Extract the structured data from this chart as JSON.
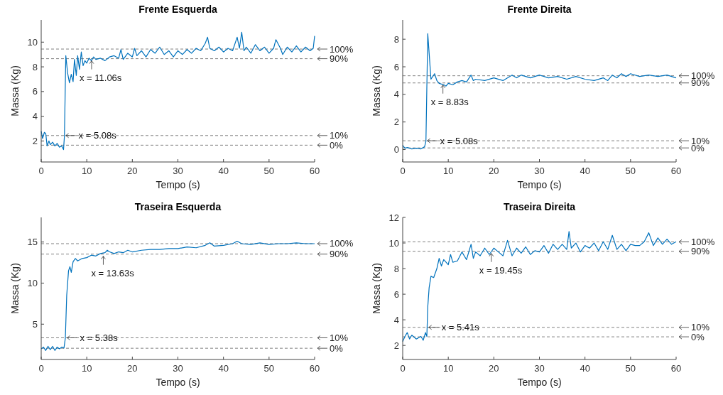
{
  "chart_data": [
    {
      "type": "line",
      "title": "Frente Esquerda",
      "xlabel": "Tempo (s)",
      "ylabel": "Massa (Kg)",
      "xlim": [
        0,
        60
      ],
      "xticks": [
        0,
        10,
        20,
        30,
        40,
        50,
        60
      ],
      "ylim": [
        0.3,
        11.8
      ],
      "yticks": [
        2,
        4,
        6,
        8,
        10
      ],
      "series": [
        {
          "color": "#0072bd",
          "x": [
            0,
            0.3,
            0.7,
            1,
            1.3,
            1.7,
            2,
            2.5,
            3,
            3.5,
            4,
            4.5,
            4.9,
            5.1,
            5.4,
            5.8,
            6.2,
            6.6,
            7,
            7.3,
            7.7,
            8,
            8.4,
            8.8,
            9.2,
            9.6,
            10,
            10.5,
            11,
            11.5,
            12,
            13,
            14,
            15,
            16,
            17,
            17.5,
            18,
            19,
            20,
            20.5,
            21,
            22,
            23,
            24,
            25,
            26,
            27,
            28,
            29,
            30,
            31,
            32,
            33,
            34,
            35,
            36,
            36.5,
            37,
            38,
            39,
            40,
            41,
            42,
            43,
            43.5,
            44,
            44.5,
            45,
            46,
            47,
            48,
            49,
            50,
            51,
            51.5,
            52.5,
            53,
            54,
            55,
            56,
            57,
            58,
            59,
            59.7,
            60
          ],
          "values": [
            2.8,
            2.2,
            2.7,
            2.6,
            1.6,
            2.0,
            1.7,
            1.9,
            1.6,
            1.8,
            1.5,
            1.6,
            1.3,
            2.4,
            8.9,
            7.5,
            6.7,
            7.4,
            6.8,
            8.6,
            7.3,
            8.9,
            7.8,
            9.2,
            8.1,
            8.5,
            8.3,
            8.7,
            8.5,
            8.8,
            8.6,
            8.7,
            8.5,
            8.8,
            8.9,
            8.7,
            9.4,
            8.6,
            9.1,
            8.8,
            9.5,
            8.9,
            9.3,
            8.8,
            9.4,
            9.1,
            9.6,
            9.0,
            9.3,
            8.8,
            9.3,
            9.0,
            9.4,
            9.1,
            9.5,
            9.3,
            9.9,
            10.4,
            9.5,
            9.3,
            9.6,
            9.2,
            9.5,
            9.3,
            10.4,
            9.5,
            10.8,
            9.3,
            9.6,
            9.1,
            9.8,
            9.3,
            9.6,
            9.1,
            9.5,
            10.2,
            9.5,
            9.0,
            9.6,
            9.2,
            9.7,
            9.2,
            9.6,
            9.3,
            9.5,
            10.5
          ]
        }
      ],
      "ref_lines": [
        {
          "axis": "y",
          "value": 9.44,
          "color": "#808080",
          "line_style": "dashed"
        },
        {
          "axis": "y",
          "value": 8.66,
          "color": "#808080",
          "line_style": "dashed"
        },
        {
          "axis": "y",
          "value": 2.44,
          "color": "#808080",
          "line_style": "dashed"
        },
        {
          "axis": "y",
          "value": 1.66,
          "color": "#808080",
          "line_style": "dashed"
        }
      ],
      "annotations": [
        {
          "text": "x = 5.08s",
          "x": 5.08,
          "y": 2.44
        },
        {
          "text": "x = 11.06s",
          "x": 11.06,
          "y": 8.66
        },
        {
          "text": "100%",
          "x": 60,
          "y": 9.44
        },
        {
          "text": "90%",
          "x": 60,
          "y": 8.66
        },
        {
          "text": "10%",
          "x": 60,
          "y": 2.44
        },
        {
          "text": "0%",
          "x": 60,
          "y": 1.66
        }
      ]
    },
    {
      "type": "line",
      "title": "Frente Direita",
      "xlabel": "Tempo (s)",
      "ylabel": "Massa (Kg)",
      "xlim": [
        0,
        60
      ],
      "xticks": [
        0,
        10,
        20,
        30,
        40,
        50,
        60
      ],
      "ylim": [
        -0.9,
        9.4
      ],
      "yticks": [
        0,
        2,
        4,
        6,
        8
      ],
      "series": [
        {
          "color": "#0072bd",
          "x": [
            0,
            0.5,
            1,
            2,
            3,
            4,
            4.8,
            5.1,
            5.5,
            5.8,
            6.2,
            6.6,
            7,
            7.5,
            8,
            9,
            9.5,
            10,
            11,
            12,
            13,
            14,
            15,
            15.5,
            16,
            18,
            20,
            22,
            24,
            25,
            26,
            28,
            30,
            32,
            34,
            36,
            38,
            40,
            42,
            44,
            45,
            46,
            47,
            48,
            49,
            50,
            52,
            54,
            56,
            58,
            60
          ],
          "values": [
            0.3,
            0.1,
            0.15,
            0.05,
            0.1,
            0.05,
            0.2,
            0.6,
            8.4,
            7.0,
            5.1,
            5.3,
            5.5,
            5.0,
            4.8,
            4.7,
            4.6,
            4.8,
            4.7,
            4.9,
            5.0,
            4.9,
            5.4,
            5.0,
            5.1,
            5.0,
            5.2,
            5.0,
            5.4,
            5.2,
            5.4,
            5.2,
            5.4,
            5.2,
            5.3,
            5.1,
            5.3,
            5.1,
            5.0,
            5.2,
            5.0,
            5.4,
            5.2,
            5.5,
            5.3,
            5.5,
            5.3,
            5.4,
            5.3,
            5.4,
            5.2
          ]
        }
      ],
      "ref_lines": [
        {
          "axis": "y",
          "value": 5.35,
          "color": "#808080",
          "line_style": "dashed"
        },
        {
          "axis": "y",
          "value": 4.83,
          "color": "#808080",
          "line_style": "dashed"
        },
        {
          "axis": "y",
          "value": 0.64,
          "color": "#808080",
          "line_style": "dashed"
        },
        {
          "axis": "y",
          "value": 0.12,
          "color": "#808080",
          "line_style": "dashed"
        }
      ],
      "annotations": [
        {
          "text": "x = 5.08s",
          "x": 5.08,
          "y": 0.64
        },
        {
          "text": "x = 8.83s",
          "x": 8.83,
          "y": 4.83
        },
        {
          "text": "100%",
          "x": 60,
          "y": 5.35
        },
        {
          "text": "90%",
          "x": 60,
          "y": 4.83
        },
        {
          "text": "10%",
          "x": 60,
          "y": 0.64
        },
        {
          "text": "0%",
          "x": 60,
          "y": 0.12
        }
      ]
    },
    {
      "type": "line",
      "title": "Traseira Esquerda",
      "xlabel": "Tempo (s)",
      "ylabel": "Massa (Kg)",
      "xlim": [
        0,
        60
      ],
      "xticks": [
        0,
        10,
        20,
        30,
        40,
        50,
        60
      ],
      "ylim": [
        0.7,
        18
      ],
      "yticks": [
        5,
        10,
        15
      ],
      "series": [
        {
          "color": "#0072bd",
          "x": [
            0,
            0.5,
            1,
            1.5,
            2,
            2.5,
            3,
            3.5,
            4,
            4.5,
            5,
            5.3,
            5.6,
            6,
            6.3,
            6.6,
            7,
            7.5,
            8,
            9,
            10,
            11,
            12,
            13,
            14,
            14.5,
            15,
            16,
            17,
            18,
            19,
            20,
            22,
            24,
            26,
            28,
            30,
            32,
            34,
            36,
            37,
            38,
            40,
            42,
            43,
            44,
            46,
            48,
            50,
            52,
            54,
            56,
            58,
            60
          ],
          "values": [
            2.0,
            2.2,
            1.8,
            2.3,
            1.9,
            2.3,
            1.8,
            2.2,
            2.0,
            2.2,
            2.1,
            3.3,
            8.5,
            11.5,
            12.0,
            11.3,
            12.6,
            13.0,
            12.7,
            13.0,
            13.1,
            13.4,
            13.3,
            13.6,
            13.7,
            14.0,
            13.8,
            13.6,
            13.8,
            13.7,
            14.0,
            13.8,
            14.0,
            14.1,
            14.1,
            14.2,
            14.2,
            14.4,
            14.3,
            14.6,
            14.9,
            14.5,
            14.6,
            14.8,
            15.1,
            14.8,
            14.7,
            14.9,
            14.7,
            14.8,
            14.8,
            14.9,
            14.8,
            14.8
          ]
        }
      ],
      "ref_lines": [
        {
          "axis": "y",
          "value": 14.8,
          "color": "#808080",
          "line_style": "dashed"
        },
        {
          "axis": "y",
          "value": 13.53,
          "color": "#808080",
          "line_style": "dashed"
        },
        {
          "axis": "y",
          "value": 3.34,
          "color": "#808080",
          "line_style": "dashed"
        },
        {
          "axis": "y",
          "value": 2.07,
          "color": "#808080",
          "line_style": "dashed"
        }
      ],
      "annotations": [
        {
          "text": "x = 5.38s",
          "x": 5.38,
          "y": 3.34
        },
        {
          "text": "x = 13.63s",
          "x": 13.63,
          "y": 13.53
        },
        {
          "text": "100%",
          "x": 60,
          "y": 14.8
        },
        {
          "text": "90%",
          "x": 60,
          "y": 13.53
        },
        {
          "text": "10%",
          "x": 60,
          "y": 3.34
        },
        {
          "text": "0%",
          "x": 60,
          "y": 2.07
        }
      ]
    },
    {
      "type": "line",
      "title": "Traseira Direita",
      "xlabel": "Tempo (s)",
      "ylabel": "Massa (Kg)",
      "xlim": [
        0,
        60
      ],
      "xticks": [
        0,
        10,
        20,
        30,
        40,
        50,
        60
      ],
      "ylim": [
        0.9,
        12
      ],
      "yticks": [
        2,
        4,
        6,
        8,
        10,
        12
      ],
      "series": [
        {
          "color": "#0072bd",
          "x": [
            0,
            0.5,
            1,
            1.5,
            2,
            3,
            4,
            4.5,
            5,
            5.3,
            5.5,
            5.8,
            6.2,
            6.8,
            7.5,
            8,
            8.5,
            9,
            10,
            10.5,
            11,
            12,
            13,
            14,
            15,
            15.5,
            16,
            17,
            18,
            19,
            20,
            21,
            22,
            23,
            24,
            25,
            26,
            27,
            28,
            29,
            30,
            31,
            32,
            33,
            34,
            35,
            36,
            36.5,
            37,
            38,
            39,
            40,
            41,
            42,
            43,
            44,
            45,
            46,
            47,
            48,
            49,
            50,
            51,
            52,
            53,
            54,
            55,
            56,
            57,
            58,
            59,
            60
          ],
          "values": [
            2.3,
            2.7,
            3.0,
            2.5,
            2.8,
            2.5,
            2.7,
            2.4,
            3.0,
            2.7,
            5.0,
            6.5,
            7.4,
            7.3,
            8.0,
            8.8,
            8.2,
            8.7,
            8.3,
            9.1,
            8.5,
            8.6,
            9.3,
            8.7,
            9.9,
            8.8,
            9.3,
            9.0,
            9.6,
            9.1,
            9.6,
            9.3,
            9.0,
            10.2,
            9.0,
            9.6,
            9.2,
            9.7,
            9.1,
            9.4,
            9.3,
            9.8,
            9.2,
            9.9,
            9.5,
            9.9,
            9.5,
            10.9,
            9.6,
            10.0,
            9.3,
            9.8,
            9.6,
            10.0,
            9.4,
            10.1,
            9.5,
            10.6,
            9.5,
            9.9,
            9.4,
            9.9,
            9.8,
            9.8,
            10.1,
            10.8,
            9.8,
            10.4,
            9.9,
            10.3,
            9.9,
            10.1
          ]
        }
      ],
      "ref_lines": [
        {
          "axis": "y",
          "value": 10.09,
          "color": "#808080",
          "line_style": "dashed"
        },
        {
          "axis": "y",
          "value": 9.35,
          "color": "#808080",
          "line_style": "dashed"
        },
        {
          "axis": "y",
          "value": 3.41,
          "color": "#808080",
          "line_style": "dashed"
        },
        {
          "axis": "y",
          "value": 2.67,
          "color": "#808080",
          "line_style": "dashed"
        }
      ],
      "annotations": [
        {
          "text": "x = 5.41s",
          "x": 5.41,
          "y": 3.41
        },
        {
          "text": "x = 19.45s",
          "x": 19.45,
          "y": 9.35
        },
        {
          "text": "100%",
          "x": 60,
          "y": 10.09
        },
        {
          "text": "90%",
          "x": 60,
          "y": 9.35
        },
        {
          "text": "10%",
          "x": 60,
          "y": 3.41
        },
        {
          "text": "0%",
          "x": 60,
          "y": 2.67
        }
      ]
    }
  ]
}
